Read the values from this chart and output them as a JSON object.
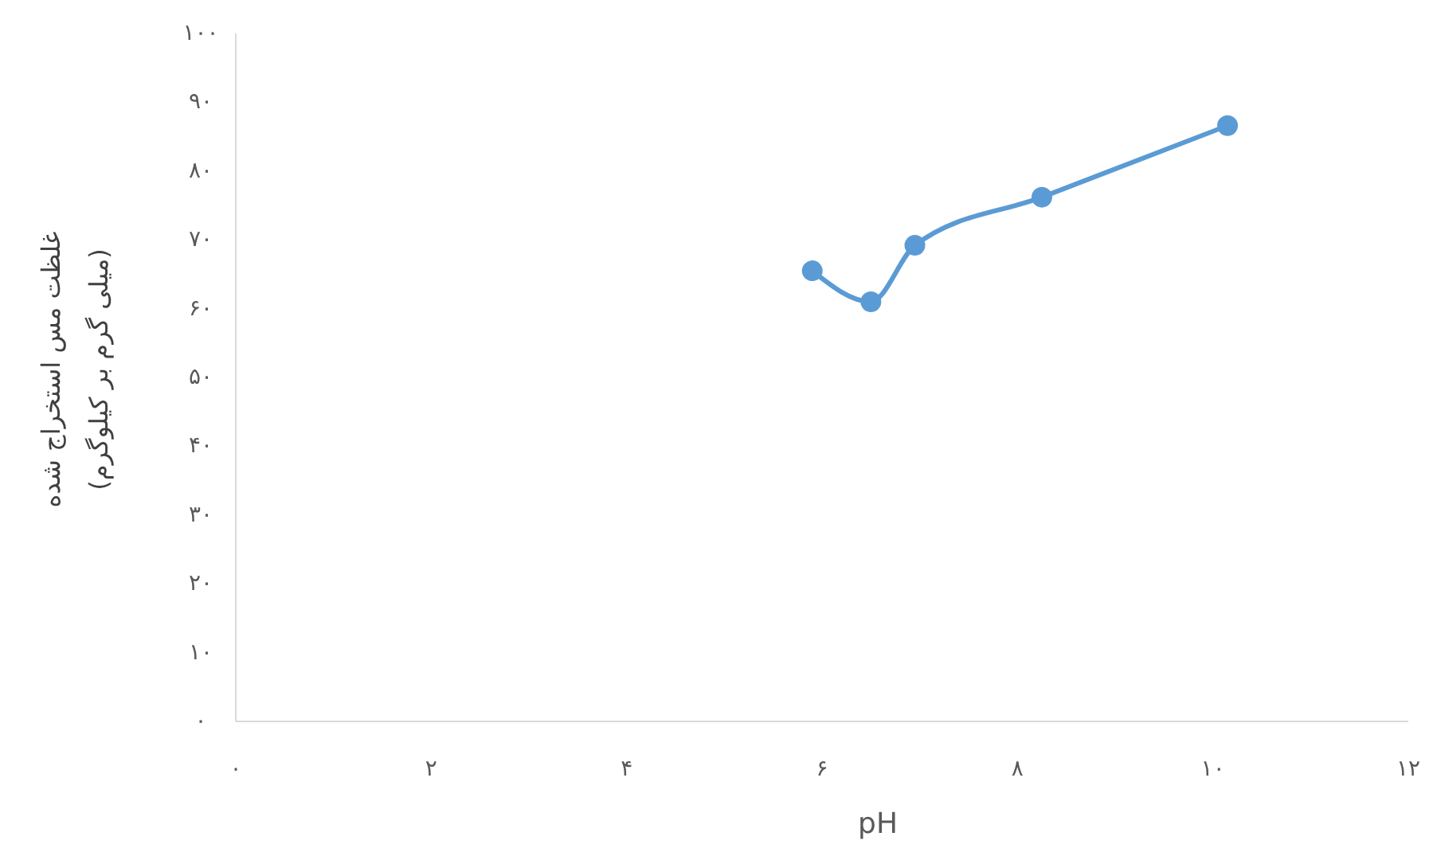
{
  "chart_data": {
    "type": "line",
    "xlabel": "pH",
    "ylabel": "غلظت مس استخراج شده\n(میلی گرم بر کیلوگرم)",
    "x": [
      5.9,
      6.5,
      6.95,
      8.25,
      10.15
    ],
    "series": [
      {
        "color": "#5b9bd5",
        "values": [
          65.5,
          61,
          69.2,
          76.2,
          86.6
        ]
      }
    ],
    "xlim": [
      0,
      12
    ],
    "ylim": [
      0,
      100
    ],
    "xticks": [
      {
        "value": 0,
        "label": "۰"
      },
      {
        "value": 2,
        "label": "۲"
      },
      {
        "value": 4,
        "label": "۴"
      },
      {
        "value": 6,
        "label": "۶"
      },
      {
        "value": 8,
        "label": "۸"
      },
      {
        "value": 10,
        "label": "۱۰"
      },
      {
        "value": 12,
        "label": "۱۲"
      }
    ],
    "yticks": [
      {
        "value": 0,
        "label": "۰"
      },
      {
        "value": 10,
        "label": "۱۰"
      },
      {
        "value": 20,
        "label": "۲۰"
      },
      {
        "value": 30,
        "label": "۳۰"
      },
      {
        "value": 40,
        "label": "۴۰"
      },
      {
        "value": 50,
        "label": "۵۰"
      },
      {
        "value": 60,
        "label": "۶۰"
      },
      {
        "value": 70,
        "label": "۷۰"
      },
      {
        "value": 80,
        "label": "۸۰"
      },
      {
        "value": 90,
        "label": "۹۰"
      },
      {
        "value": 100,
        "label": "۱۰۰"
      }
    ],
    "grid": false,
    "marker": "circle",
    "line_style": "solid"
  }
}
